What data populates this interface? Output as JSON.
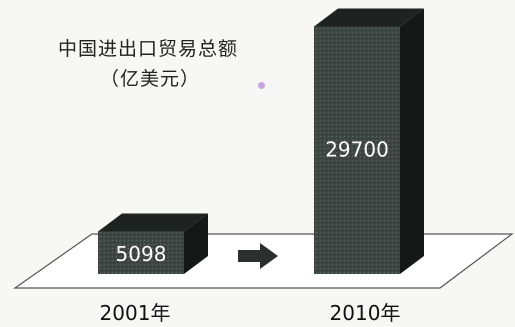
{
  "chart_data": {
    "type": "bar",
    "title": "中国进出口贸易总额",
    "subtitle": "（亿美元）",
    "categories": [
      "2001年",
      "2010年"
    ],
    "values": [
      5098,
      29700
    ],
    "value_labels": [
      "5098",
      "29700"
    ],
    "ylim": [
      0,
      30000
    ],
    "grid": false,
    "style": "3d",
    "annotation": "right-arrow",
    "colors": {
      "bar_front": "#3d4643",
      "bar_top": "#1e2321",
      "bar_side": "#151817",
      "label": "#ffffff",
      "plate_line": "#555555"
    }
  }
}
